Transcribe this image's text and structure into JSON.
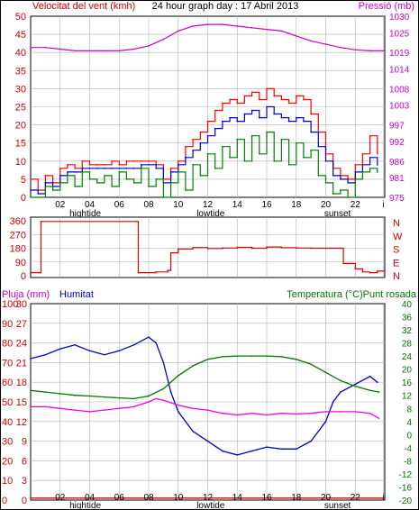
{
  "header": {
    "left_title": "Velocitat del vent (kmh)",
    "center_title": "24 hour graph day : 17 Abril 2013",
    "right_title": "Pressió (mb)"
  },
  "colors": {
    "background": "#ffffff",
    "frame": "#000000",
    "grid": "#b0b0b0",
    "wind_gust": "#ff0000",
    "wind_avg": "#0000cc",
    "wind_speed": "#008000",
    "pressure": "#cc00cc",
    "direction": "#dd0000",
    "rain": "#dd0000",
    "humidity": "#0000cc",
    "temperature": "#007700",
    "dewpoint": "#ee00ee",
    "left_axis_text": "#cc0000",
    "right_axis_text": "#cc00cc",
    "dir_axis_text": "#cc0000"
  },
  "x_axis": {
    "ticks": [
      "02",
      "04",
      "06",
      "08",
      "10",
      "12",
      "14",
      "16",
      "18",
      "20",
      "22",
      "i"
    ],
    "tick_hours": [
      2,
      4,
      6,
      8,
      10,
      12,
      14,
      16,
      18,
      20,
      22,
      23.9
    ],
    "event_labels": [
      {
        "text": "hightide",
        "hour": 3.7
      },
      {
        "text": "lowtide",
        "hour": 12.2
      },
      {
        "text": "sunset",
        "hour": 20.8
      }
    ]
  },
  "chart_data": [
    {
      "type": "line",
      "name": "wind-pressure",
      "xlim": [
        0,
        24
      ],
      "y_left": {
        "label": "Velocitat del vent (kmh)",
        "ylim": [
          0,
          50
        ],
        "ticks": [
          0,
          5,
          10,
          15,
          20,
          25,
          30,
          35,
          40,
          45,
          50
        ]
      },
      "y_right": {
        "label": "Pressió (mb)",
        "ylim": [
          975,
          1030
        ],
        "ticks": [
          975,
          981,
          986,
          992,
          997,
          1003,
          1008,
          1014,
          1019,
          1025,
          1030
        ]
      },
      "series": [
        {
          "key": "gust",
          "axis": "left",
          "color": "#ff0000",
          "x": [
            0,
            0.5,
            1,
            1.5,
            2,
            2.5,
            3,
            3.5,
            4,
            4.5,
            5,
            5.5,
            6,
            6.5,
            7,
            7.5,
            8,
            8.5,
            9,
            9.5,
            10,
            10.5,
            11,
            11.5,
            12,
            12.5,
            13,
            13.5,
            14,
            14.5,
            15,
            15.5,
            16,
            16.5,
            17,
            17.5,
            18,
            18.5,
            19,
            19.5,
            20,
            20.5,
            21,
            21.5,
            22,
            22.5,
            23,
            23.5
          ],
          "y": [
            5,
            2,
            6,
            4,
            8,
            9,
            8,
            10,
            9,
            9,
            9,
            10,
            9,
            10,
            10,
            10,
            10,
            9,
            5,
            8,
            10,
            14,
            16,
            18,
            21,
            24,
            26,
            27,
            26,
            28,
            29,
            27,
            30,
            28,
            27,
            26,
            28,
            27,
            23,
            18,
            12,
            8,
            6,
            5,
            9,
            12,
            17,
            12
          ]
        },
        {
          "key": "average",
          "axis": "left",
          "color": "#0000cc",
          "x": [
            0,
            0.5,
            1,
            1.5,
            2,
            2.5,
            3,
            3.5,
            4,
            4.5,
            5,
            5.5,
            6,
            6.5,
            7,
            7.5,
            8,
            8.5,
            9,
            9.5,
            10,
            10.5,
            11,
            11.5,
            12,
            12.5,
            13,
            13.5,
            14,
            14.5,
            15,
            15.5,
            16,
            16.5,
            17,
            17.5,
            18,
            18.5,
            19,
            19.5,
            20,
            20.5,
            21,
            21.5,
            22,
            22.5,
            23,
            23.5
          ],
          "y": [
            2,
            1,
            4,
            3,
            6,
            7,
            7,
            8,
            8,
            8,
            8,
            8,
            8,
            8,
            8,
            9,
            9,
            8,
            4,
            7,
            9,
            11,
            13,
            15,
            17,
            19,
            21,
            22,
            21,
            23,
            24,
            22,
            25,
            23,
            22,
            21,
            22,
            21,
            18,
            14,
            10,
            6,
            5,
            4,
            7,
            9,
            11,
            9
          ]
        },
        {
          "key": "speed",
          "axis": "left",
          "color": "#008000",
          "x": [
            0,
            0.5,
            1,
            1.5,
            2,
            2.5,
            3,
            3.5,
            4,
            4.5,
            5,
            5.5,
            6,
            6.5,
            7,
            7.5,
            8,
            8.5,
            9,
            9.5,
            10,
            10.5,
            11,
            11.5,
            12,
            12.5,
            13,
            13.5,
            14,
            14.5,
            15,
            15.5,
            16,
            16.5,
            17,
            17.5,
            18,
            18.5,
            19,
            19.5,
            20,
            20.5,
            21,
            21.5,
            22,
            22.5,
            23,
            23.5
          ],
          "y": [
            0,
            0,
            3,
            2,
            4,
            6,
            3,
            7,
            5,
            4,
            6,
            3,
            7,
            5,
            4,
            8,
            3,
            5,
            0,
            4,
            7,
            2,
            9,
            6,
            12,
            8,
            14,
            11,
            16,
            10,
            17,
            12,
            18,
            10,
            16,
            9,
            15,
            11,
            13,
            6,
            4,
            1,
            2,
            0,
            5,
            7,
            8,
            7
          ]
        },
        {
          "key": "pressure",
          "axis": "right",
          "color": "#cc00cc",
          "x": [
            0,
            1,
            2,
            3,
            4,
            5,
            6,
            7,
            8,
            9,
            10,
            11,
            12,
            13,
            14,
            15,
            16,
            17,
            18,
            19,
            20,
            21,
            22,
            23,
            24
          ],
          "y": [
            1020.5,
            1020.5,
            1020,
            1019.5,
            1019.5,
            1019.5,
            1019.5,
            1020,
            1021,
            1023,
            1025.5,
            1027,
            1027.5,
            1027.5,
            1027,
            1026.5,
            1026,
            1025.5,
            1024,
            1022.5,
            1021.5,
            1020.5,
            1019.8,
            1019.5,
            1019.5
          ]
        }
      ]
    },
    {
      "type": "line",
      "name": "wind-direction",
      "xlim": [
        0,
        24
      ],
      "y_left": {
        "ylim": [
          0,
          360
        ],
        "ticks": [
          0,
          90,
          180,
          270,
          360
        ]
      },
      "y_right": {
        "labels": [
          "N",
          "W",
          "S",
          "E",
          "N"
        ]
      },
      "series": [
        {
          "key": "direction",
          "axis": "left",
          "color": "#dd0000",
          "x": [
            0,
            0.6,
            0.7,
            7.2,
            7.3,
            8.5,
            9.3,
            9.5,
            10,
            11,
            12,
            13,
            14,
            15,
            16,
            17,
            18,
            19,
            20,
            21,
            21.2,
            22,
            22.5,
            23,
            23.5,
            24
          ],
          "y": [
            20,
            20,
            355,
            355,
            20,
            25,
            35,
            150,
            175,
            185,
            178,
            182,
            186,
            180,
            188,
            184,
            182,
            180,
            180,
            180,
            80,
            45,
            25,
            20,
            30,
            30
          ]
        }
      ]
    },
    {
      "type": "line",
      "name": "rain-humidity-temperature",
      "xlim": [
        0,
        24
      ],
      "y_left": {
        "label": "Pluja (mm)",
        "ylim": [
          0,
          100
        ],
        "ticks": [
          0,
          10,
          20,
          30,
          40,
          50,
          60,
          70,
          80,
          90,
          100
        ]
      },
      "y_inner": {
        "label": "Humitat",
        "ticks": [
          0,
          3,
          6,
          9,
          12,
          15,
          18,
          21,
          24,
          27,
          30
        ]
      },
      "y_right": {
        "label": "Temperatura (°C)Punt rosada",
        "ylim": [
          -20,
          40
        ],
        "ticks": [
          -20,
          -16,
          -12,
          -8,
          -4,
          0,
          4,
          8,
          12,
          16,
          20,
          24,
          28,
          32,
          36,
          40
        ]
      },
      "series": [
        {
          "key": "rain",
          "axis": "left",
          "color": "#dd0000",
          "x": [
            0,
            24
          ],
          "y": [
            1,
            1
          ]
        },
        {
          "key": "humidity",
          "axis": "left",
          "color": "#0000cc",
          "x": [
            0,
            1,
            2,
            3,
            4,
            5,
            6,
            7,
            8,
            8.5,
            9,
            9.5,
            10,
            11,
            12,
            13,
            14,
            15,
            16,
            17,
            18,
            19,
            20,
            20.5,
            21,
            22,
            23,
            23.5
          ],
          "y": [
            72,
            74,
            77,
            79,
            76,
            74,
            76,
            79,
            83,
            80,
            70,
            55,
            45,
            35,
            30,
            25,
            23,
            25,
            27,
            26,
            26,
            30,
            40,
            50,
            55,
            59,
            63,
            60
          ]
        },
        {
          "key": "temperature",
          "axis": "right",
          "color": "#007700",
          "x": [
            0,
            1,
            2,
            3,
            4,
            5,
            6,
            7,
            8,
            9,
            10,
            11,
            12,
            13,
            14,
            15,
            16,
            17,
            18,
            19,
            20,
            21,
            22,
            23,
            23.6
          ],
          "y": [
            13.5,
            13,
            12.5,
            12,
            11.8,
            11.5,
            11.2,
            11,
            11.8,
            14,
            18,
            21,
            23,
            23.8,
            24,
            24,
            24,
            23.8,
            23,
            21.5,
            19,
            16.5,
            14.8,
            13.5,
            13
          ]
        },
        {
          "key": "dewpoint",
          "axis": "right",
          "color": "#ee00ee",
          "x": [
            0,
            1,
            2,
            3,
            4,
            5,
            6,
            7,
            8,
            8.5,
            9,
            10,
            11,
            12,
            13,
            14,
            15,
            16,
            17,
            18,
            19,
            20,
            21,
            22,
            23,
            23.6
          ],
          "y": [
            8.5,
            8.5,
            8,
            7.5,
            7,
            7.5,
            8,
            8.5,
            10,
            11,
            10.5,
            9,
            8,
            7.5,
            6.5,
            6,
            6.5,
            6,
            6.5,
            6.3,
            6.5,
            7,
            7,
            7,
            6.5,
            5
          ]
        }
      ]
    }
  ]
}
